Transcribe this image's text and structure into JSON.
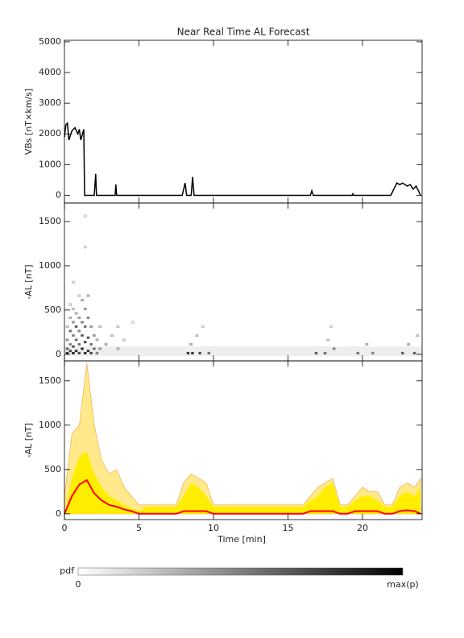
{
  "chart_data": [
    {
      "type": "line",
      "title": "Near Real Time AL Forecast",
      "ylabel": "VBs [nT×km/s]",
      "color": "#000000",
      "x": [
        0,
        0.1,
        0.2,
        0.3,
        0.5,
        0.7,
        0.9,
        1.0,
        1.1,
        1.3,
        1.35,
        2.0,
        2.1,
        2.15,
        3.4,
        3.45,
        3.5,
        7.9,
        8.1,
        8.2,
        8.5,
        8.6,
        8.7,
        16.5,
        16.6,
        16.7,
        19.3,
        19.35,
        19.4,
        21.9,
        22.1,
        22.3,
        22.5,
        22.7,
        23.0,
        23.2,
        23.4,
        23.6,
        23.8,
        23.9
      ],
      "values": [
        1900,
        2300,
        2350,
        1800,
        2100,
        2200,
        2000,
        2150,
        1800,
        2150,
        0,
        0,
        700,
        0,
        0,
        350,
        0,
        0,
        400,
        0,
        0,
        600,
        0,
        0,
        150,
        0,
        0,
        50,
        0,
        0,
        200,
        400,
        350,
        400,
        300,
        350,
        200,
        300,
        100,
        0
      ],
      "xlim": [
        0,
        24
      ],
      "xticks": [
        0,
        5,
        10,
        15,
        20
      ],
      "ylim": [
        -250,
        5050
      ],
      "yticks": [
        0,
        1000,
        2000,
        3000,
        4000,
        5000
      ]
    },
    {
      "type": "heatmap",
      "ylabel": "-AL [nT]",
      "cells": [
        [
          0.1,
          0,
          0.9
        ],
        [
          0.1,
          50,
          0.6
        ],
        [
          0.1,
          150,
          0.4
        ],
        [
          0.1,
          300,
          0.2
        ],
        [
          0.3,
          25,
          0.8
        ],
        [
          0.3,
          100,
          0.5
        ],
        [
          0.3,
          250,
          0.6
        ],
        [
          0.3,
          400,
          0.3
        ],
        [
          0.3,
          550,
          0.15
        ],
        [
          0.5,
          0,
          1
        ],
        [
          0.5,
          75,
          0.7
        ],
        [
          0.5,
          200,
          0.5
        ],
        [
          0.5,
          350,
          0.4
        ],
        [
          0.5,
          500,
          0.2
        ],
        [
          0.5,
          800,
          0.1
        ],
        [
          0.7,
          25,
          0.9
        ],
        [
          0.7,
          150,
          0.6
        ],
        [
          0.7,
          300,
          0.7
        ],
        [
          0.7,
          450,
          0.3
        ],
        [
          0.9,
          0,
          0.8
        ],
        [
          0.9,
          100,
          0.6
        ],
        [
          0.9,
          250,
          0.5
        ],
        [
          0.9,
          400,
          0.4
        ],
        [
          0.9,
          650,
          0.15
        ],
        [
          1.1,
          50,
          0.9
        ],
        [
          1.1,
          200,
          0.7
        ],
        [
          1.1,
          350,
          0.5
        ],
        [
          1.1,
          600,
          0.3
        ],
        [
          1.3,
          0,
          1
        ],
        [
          1.3,
          125,
          0.8
        ],
        [
          1.3,
          300,
          0.6
        ],
        [
          1.3,
          500,
          0.4
        ],
        [
          1.3,
          1200,
          0.1
        ],
        [
          1.3,
          1550,
          0.1
        ],
        [
          1.5,
          25,
          0.9
        ],
        [
          1.5,
          175,
          0.7
        ],
        [
          1.5,
          400,
          0.5
        ],
        [
          1.5,
          650,
          0.3
        ],
        [
          1.7,
          0,
          0.8
        ],
        [
          1.7,
          100,
          0.6
        ],
        [
          1.7,
          300,
          0.4
        ],
        [
          1.9,
          50,
          0.6
        ],
        [
          1.9,
          200,
          0.4
        ],
        [
          2.1,
          0,
          0.5
        ],
        [
          2.1,
          150,
          0.3
        ],
        [
          2.3,
          50,
          0.4
        ],
        [
          2.3,
          300,
          0.2
        ],
        [
          2.7,
          100,
          0.3
        ],
        [
          3.1,
          200,
          0.2
        ],
        [
          3.5,
          50,
          0.3
        ],
        [
          3.5,
          300,
          0.15
        ],
        [
          3.9,
          150,
          0.15
        ],
        [
          4.5,
          350,
          0.1
        ],
        [
          8.2,
          0,
          0.9
        ],
        [
          8.5,
          0,
          0.9
        ],
        [
          8.4,
          100,
          0.3
        ],
        [
          8.8,
          200,
          0.2
        ],
        [
          9.0,
          0,
          0.8
        ],
        [
          9.2,
          300,
          0.1
        ],
        [
          9.6,
          0,
          0.6
        ],
        [
          16.8,
          0,
          0.7
        ],
        [
          17.4,
          0,
          0.6
        ],
        [
          17.6,
          150,
          0.2
        ],
        [
          18,
          50,
          0.5
        ],
        [
          17.8,
          300,
          0.1
        ],
        [
          19.6,
          0,
          0.6
        ],
        [
          20.2,
          100,
          0.3
        ],
        [
          20.6,
          0,
          0.5
        ],
        [
          22.6,
          0,
          0.7
        ],
        [
          23,
          100,
          0.3
        ],
        [
          23.4,
          0,
          0.7
        ],
        [
          23.6,
          200,
          0.2
        ]
      ],
      "xlim": [
        0,
        24
      ],
      "xticks": [
        0,
        5,
        10,
        15,
        20
      ],
      "ylim": [
        -75,
        1710
      ],
      "yticks": [
        0,
        500,
        1000,
        1500
      ]
    },
    {
      "type": "area",
      "ylabel": "-AL [nT]",
      "xlabel": "Time [min]",
      "x": [
        0,
        0.5,
        1,
        1.5,
        2,
        2.5,
        3,
        3.5,
        4,
        4.5,
        5,
        5.5,
        6,
        6.5,
        7,
        7.5,
        8,
        8.5,
        9,
        9.5,
        10,
        10.5,
        11,
        11.5,
        12,
        12.5,
        13,
        13.5,
        14,
        14.5,
        15,
        15.5,
        16,
        16.5,
        17,
        17.5,
        18,
        18.5,
        19,
        19.5,
        20,
        20.5,
        21,
        21.5,
        22,
        22.5,
        23,
        23.5,
        23.9
      ],
      "series": [
        {
          "color": "#ffe98a",
          "values": [
            200,
            900,
            1000,
            1700,
            1000,
            600,
            450,
            500,
            300,
            200,
            100,
            100,
            100,
            100,
            100,
            100,
            350,
            450,
            400,
            350,
            100,
            100,
            100,
            100,
            100,
            100,
            100,
            100,
            100,
            100,
            100,
            100,
            100,
            200,
            300,
            350,
            400,
            100,
            100,
            200,
            300,
            250,
            250,
            100,
            100,
            300,
            350,
            300,
            400
          ]
        },
        {
          "color": "#ffee00",
          "values": [
            0,
            400,
            650,
            700,
            450,
            300,
            200,
            150,
            100,
            60,
            30,
            80,
            80,
            80,
            80,
            80,
            200,
            350,
            300,
            200,
            80,
            80,
            80,
            80,
            80,
            80,
            80,
            80,
            80,
            80,
            80,
            80,
            80,
            150,
            200,
            300,
            350,
            80,
            80,
            150,
            200,
            200,
            150,
            80,
            80,
            200,
            250,
            200,
            300
          ]
        },
        {
          "color": "#ff0000",
          "values": [
            0,
            200,
            330,
            380,
            230,
            150,
            100,
            80,
            50,
            30,
            0,
            0,
            0,
            0,
            0,
            0,
            30,
            30,
            30,
            30,
            0,
            0,
            0,
            0,
            0,
            0,
            0,
            0,
            0,
            0,
            0,
            0,
            0,
            30,
            30,
            30,
            30,
            0,
            0,
            30,
            30,
            30,
            30,
            0,
            0,
            30,
            40,
            30,
            0
          ]
        }
      ],
      "xlim": [
        0,
        24
      ],
      "xticks": [
        0,
        5,
        10,
        15,
        20
      ],
      "ylim": [
        -65,
        1725
      ],
      "yticks": [
        0,
        500,
        1000,
        1500
      ]
    }
  ],
  "colorbar": {
    "label": "pdf",
    "min": 0,
    "max_label": "max(p)"
  }
}
